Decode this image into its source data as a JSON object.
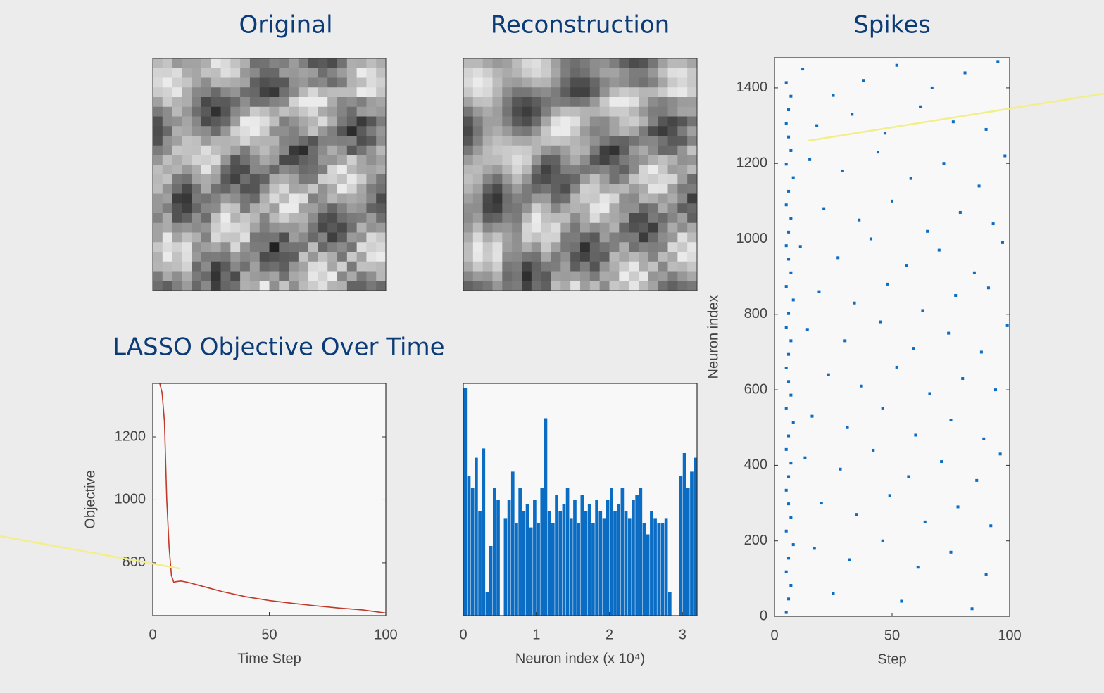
{
  "panels": [
    {
      "title": "Original"
    },
    {
      "title": "Reconstruction"
    }
  ],
  "chart_data": [
    {
      "type": "line",
      "title": "LASSO Objective Over Time",
      "xlabel": "Time Step",
      "ylabel": "Objective",
      "x": [
        3,
        4,
        5,
        6,
        7,
        8,
        9,
        10,
        12,
        15,
        20,
        25,
        30,
        40,
        50,
        60,
        70,
        80,
        90,
        95,
        100
      ],
      "values": [
        1370,
        1340,
        1250,
        1000,
        850,
        760,
        738,
        740,
        742,
        738,
        728,
        718,
        708,
        692,
        680,
        671,
        663,
        656,
        650,
        645,
        640
      ],
      "color": "#c0392b",
      "xlim": [
        0,
        100
      ],
      "xticks": [
        0,
        50,
        100
      ],
      "ylim": [
        632,
        1370
      ],
      "yticks": [
        800,
        1000,
        1200
      ]
    },
    {
      "type": "bar",
      "xlabel": "Neuron index (x 10⁴)",
      "x": [
        0,
        0.05,
        0.1,
        0.15,
        0.2,
        0.25,
        0.3,
        0.35,
        0.4,
        0.45,
        0.5,
        0.55,
        0.6,
        0.65,
        0.7,
        0.75,
        0.8,
        0.85,
        0.9,
        0.95,
        1.0,
        1.05,
        1.1,
        1.15,
        1.2,
        1.25,
        1.3,
        1.35,
        1.4,
        1.45,
        1.5,
        1.55,
        1.6,
        1.65,
        1.7,
        1.75,
        1.8,
        1.85,
        1.9,
        1.95,
        2.0,
        2.05,
        2.1,
        2.15,
        2.2,
        2.25,
        2.3,
        2.35,
        2.4,
        2.45,
        2.5,
        2.55,
        2.6,
        2.65,
        2.7,
        2.75,
        2.8,
        2.85,
        2.9,
        2.95,
        3.0,
        3.05,
        3.1,
        3.15
      ],
      "values": [
        0.98,
        0.6,
        0.55,
        0.68,
        0.45,
        0.72,
        0.1,
        0.3,
        0.55,
        0.5,
        0.0,
        0.42,
        0.5,
        0.62,
        0.4,
        0.55,
        0.45,
        0.48,
        0.38,
        0.5,
        0.4,
        0.55,
        0.85,
        0.45,
        0.4,
        0.52,
        0.45,
        0.48,
        0.55,
        0.42,
        0.5,
        0.4,
        0.52,
        0.45,
        0.48,
        0.4,
        0.5,
        0.45,
        0.42,
        0.5,
        0.55,
        0.45,
        0.48,
        0.55,
        0.45,
        0.42,
        0.5,
        0.52,
        0.55,
        0.4,
        0.35,
        0.45,
        0.42,
        0.4,
        0.4,
        0.42,
        0.1,
        0,
        0,
        0.6,
        0.7,
        0.55,
        0.62,
        0.68
      ],
      "color": "#0b6cc4",
      "xlim": [
        0,
        3.2
      ],
      "xticks": [
        0,
        1,
        2,
        3
      ],
      "ylim": [
        0,
        1
      ]
    },
    {
      "type": "scatter",
      "title": "Spikes",
      "xlabel": "Step",
      "ylabel": "Neuron index",
      "x": [
        5,
        6,
        7,
        5,
        6,
        8,
        5,
        7,
        6,
        5,
        6,
        7,
        5,
        6,
        8,
        5,
        7,
        6,
        5,
        6,
        7,
        5,
        6,
        8,
        5,
        7,
        6,
        5,
        6,
        7,
        5,
        6,
        8,
        5,
        7,
        6,
        5,
        6,
        7,
        5,
        12,
        25,
        38,
        52,
        67,
        81,
        95,
        18,
        33,
        47,
        62,
        76,
        90,
        15,
        29,
        44,
        58,
        72,
        87,
        98,
        21,
        36,
        50,
        65,
        79,
        93,
        11,
        27,
        41,
        56,
        70,
        85,
        97,
        19,
        34,
        48,
        63,
        77,
        91,
        14,
        30,
        45,
        59,
        74,
        88,
        99,
        23,
        37,
        52,
        66,
        80,
        94,
        16,
        31,
        46,
        60,
        75,
        89,
        13,
        28,
        42,
        57,
        71,
        86,
        96,
        20,
        35,
        49,
        64,
        78,
        92,
        17,
        32,
        46,
        61,
        75,
        90,
        25,
        54,
        84
      ],
      "values": [
        10,
        46,
        82,
        118,
        154,
        190,
        226,
        262,
        298,
        334,
        370,
        406,
        442,
        478,
        514,
        550,
        586,
        622,
        658,
        694,
        730,
        766,
        802,
        838,
        874,
        910,
        946,
        982,
        1018,
        1054,
        1090,
        1126,
        1162,
        1198,
        1234,
        1270,
        1306,
        1342,
        1378,
        1414,
        1450,
        1380,
        1420,
        1460,
        1400,
        1440,
        1470,
        1300,
        1330,
        1280,
        1350,
        1310,
        1290,
        1210,
        1180,
        1230,
        1160,
        1200,
        1140,
        1220,
        1080,
        1050,
        1100,
        1020,
        1070,
        1040,
        980,
        950,
        1000,
        930,
        970,
        910,
        990,
        860,
        830,
        880,
        810,
        850,
        870,
        760,
        730,
        780,
        710,
        750,
        700,
        770,
        640,
        610,
        660,
        590,
        630,
        600,
        530,
        500,
        550,
        480,
        520,
        470,
        420,
        390,
        440,
        370,
        410,
        360,
        430,
        300,
        270,
        320,
        250,
        290,
        240,
        180,
        150,
        200,
        130,
        170,
        110,
        60,
        40,
        20
      ],
      "color": "#0b6cc4",
      "xlim": [
        0,
        100
      ],
      "xticks": [
        0,
        50,
        100
      ],
      "ylim": [
        0,
        1480
      ],
      "yticks": [
        0,
        200,
        400,
        600,
        800,
        1000,
        1200,
        1400
      ]
    }
  ]
}
